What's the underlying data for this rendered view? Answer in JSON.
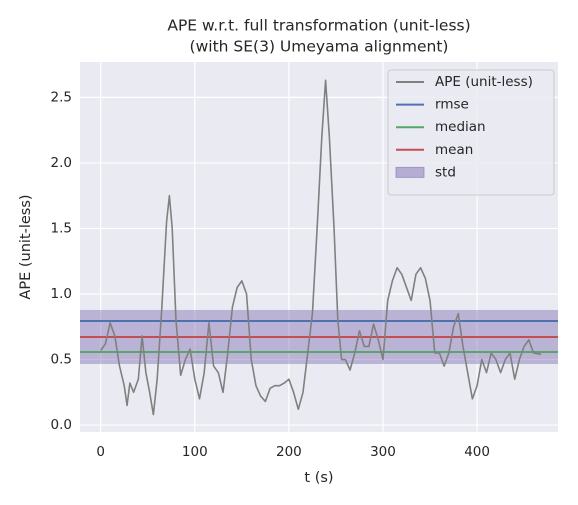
{
  "chart_data": {
    "type": "line",
    "title": "APE w.r.t. full transformation (unit-less)",
    "subtitle": "(with SE(3) Umeyama alignment)",
    "x_label": "t (s)",
    "y_label": "APE (unit-less)",
    "xlim": [
      -22,
      486
    ],
    "ylim": [
      -0.053,
      2.77
    ],
    "xticks": [
      0,
      100,
      200,
      300,
      400
    ],
    "yticks": [
      {
        "value": 0,
        "label": "0.0"
      },
      0.5,
      {
        "value": 1,
        "label": "1.0"
      },
      1.5,
      {
        "value": 2,
        "label": "2.0"
      },
      2.5
    ],
    "grid": true,
    "legend": "upper right",
    "x": [
      0,
      5,
      10,
      15,
      20,
      25,
      28,
      31,
      35,
      40,
      44,
      48,
      52,
      56,
      60,
      65,
      70,
      73,
      76,
      80,
      85,
      90,
      95,
      100,
      105,
      110,
      115,
      120,
      125,
      130,
      135,
      140,
      145,
      150,
      155,
      160,
      165,
      170,
      175,
      180,
      185,
      190,
      195,
      200,
      205,
      210,
      215,
      220,
      225,
      230,
      235,
      239,
      243,
      248,
      252,
      256,
      260,
      265,
      270,
      275,
      280,
      285,
      290,
      295,
      300,
      305,
      310,
      315,
      320,
      325,
      330,
      335,
      340,
      345,
      350,
      355,
      360,
      365,
      370,
      375,
      380,
      385,
      390,
      395,
      400,
      405,
      410,
      415,
      420,
      425,
      430,
      435,
      440,
      445,
      450,
      455,
      460,
      468
    ],
    "series": [
      {
        "name": "APE (unit-less)",
        "color": "#808080",
        "values": [
          0.57,
          0.62,
          0.78,
          0.68,
          0.45,
          0.3,
          0.15,
          0.32,
          0.25,
          0.35,
          0.68,
          0.4,
          0.25,
          0.08,
          0.35,
          0.9,
          1.55,
          1.75,
          1.5,
          0.8,
          0.38,
          0.5,
          0.58,
          0.35,
          0.2,
          0.4,
          0.78,
          0.45,
          0.4,
          0.25,
          0.55,
          0.9,
          1.05,
          1.1,
          1.0,
          0.5,
          0.3,
          0.22,
          0.18,
          0.28,
          0.3,
          0.3,
          0.32,
          0.35,
          0.25,
          0.12,
          0.25,
          0.55,
          0.85,
          1.5,
          2.2,
          2.63,
          2.2,
          1.5,
          0.8,
          0.5,
          0.5,
          0.42,
          0.55,
          0.72,
          0.6,
          0.6,
          0.77,
          0.65,
          0.5,
          0.95,
          1.1,
          1.2,
          1.15,
          1.05,
          0.95,
          1.15,
          1.2,
          1.12,
          0.95,
          0.55,
          0.55,
          0.45,
          0.55,
          0.75,
          0.85,
          0.6,
          0.4,
          0.2,
          0.3,
          0.5,
          0.4,
          0.55,
          0.5,
          0.4,
          0.5,
          0.55,
          0.35,
          0.5,
          0.6,
          0.65,
          0.55,
          0.54
        ]
      }
    ],
    "hlines": [
      {
        "name": "rmse",
        "color": "#4c72b0",
        "value": 0.794
      },
      {
        "name": "median",
        "color": "#55a868",
        "value": 0.557
      },
      {
        "name": "mean",
        "color": "#c44e52",
        "value": 0.672
      }
    ],
    "band": {
      "name": "std",
      "color": "#8172b2",
      "value": 0.206
    }
  }
}
